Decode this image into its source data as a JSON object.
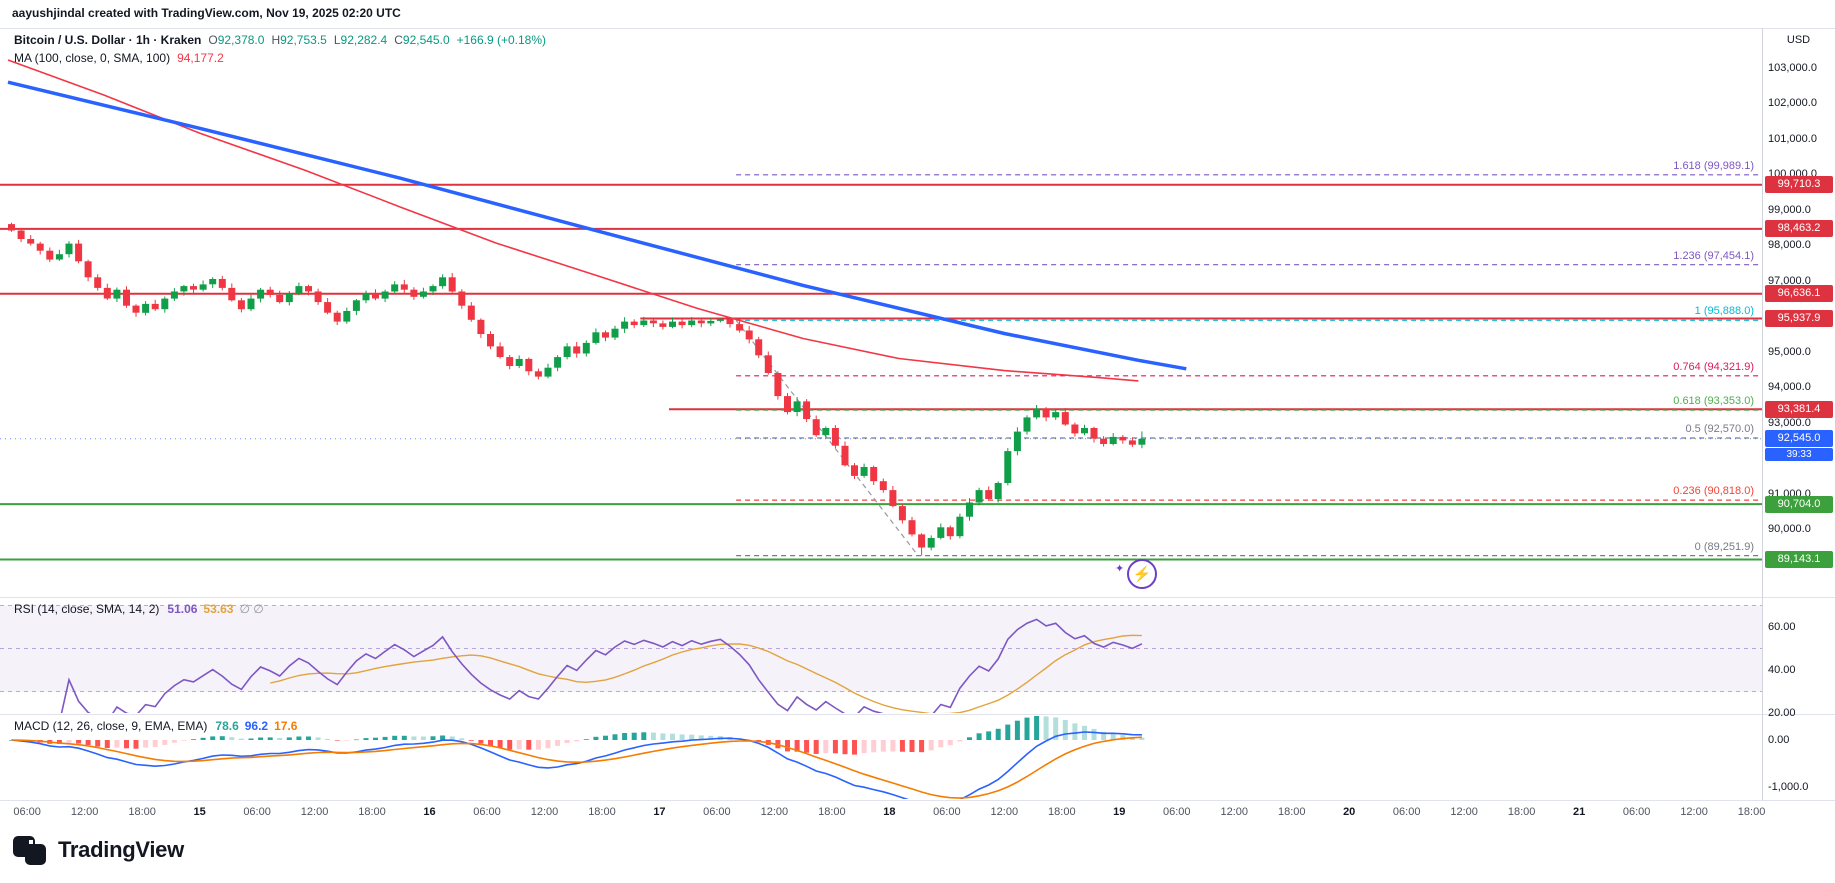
{
  "meta": {
    "attribution": "aayushjindal created with TradingView.com, Nov 19, 2025 02:20 UTC"
  },
  "legend": {
    "symbol": "Bitcoin / U.S. Dollar · 1h · Kraken",
    "ohlc": [
      {
        "k": "O",
        "v": "92,378.0"
      },
      {
        "k": "H",
        "v": "92,753.5"
      },
      {
        "k": "L",
        "v": "92,282.4"
      },
      {
        "k": "C",
        "v": "92,545.0"
      }
    ],
    "change": "+166.9 (+0.18%)",
    "ma_label": "MA (100, close, 0, SMA, 100)",
    "ma_value": "94,177.2"
  },
  "icons": {
    "lightning": "⚡",
    "sparkle": "✦"
  },
  "footer": {
    "brand": "TradingView"
  },
  "axis": {
    "currency": "USD",
    "price_ticks": [
      {
        "text": "103,000.0",
        "price": 103000
      },
      {
        "text": "102,000.0",
        "price": 102000
      },
      {
        "text": "101,000.0",
        "price": 101000
      },
      {
        "text": "100,000.0",
        "price": 100000
      },
      {
        "text": "99,000.0",
        "price": 99000
      },
      {
        "text": "98,000.0",
        "price": 98000
      },
      {
        "text": "97,000.0",
        "price": 97000
      },
      {
        "text": "96,000.0",
        "price": 96000
      },
      {
        "text": "95,000.0",
        "price": 95000
      },
      {
        "text": "94,000.0",
        "price": 94000
      },
      {
        "text": "93,000.0",
        "price": 93000
      },
      {
        "text": "91,000.0",
        "price": 91000
      },
      {
        "text": "90,000.0",
        "price": 90000
      }
    ],
    "badges": [
      {
        "text": "99,710.3",
        "price": 99710.3,
        "color": "#dd3341"
      },
      {
        "text": "98,463.2",
        "price": 98463.2,
        "color": "#dd3341"
      },
      {
        "text": "96,636.1",
        "price": 96636.1,
        "color": "#dd3341"
      },
      {
        "text": "95,937.9",
        "price": 95937.9,
        "color": "#dd3341"
      },
      {
        "text": "93,381.4",
        "price": 93381.4,
        "color": "#dd3341"
      },
      {
        "text": "92,545.0",
        "price": 92545.0,
        "color": "#2962ff",
        "countdown": "39:33"
      },
      {
        "text": "90,704.0",
        "price": 90704.0,
        "color": "#3ca03c"
      },
      {
        "text": "89,143.1",
        "price": 89143.1,
        "color": "#3ca03c"
      }
    ],
    "time_labels": [
      {
        "t": "06:00",
        "i": 2
      },
      {
        "t": "12:00",
        "i": 8
      },
      {
        "t": "18:00",
        "i": 14
      },
      {
        "t": "15",
        "i": 20,
        "day": true
      },
      {
        "t": "06:00",
        "i": 26
      },
      {
        "t": "12:00",
        "i": 32
      },
      {
        "t": "18:00",
        "i": 38
      },
      {
        "t": "16",
        "i": 44,
        "day": true
      },
      {
        "t": "06:00",
        "i": 50
      },
      {
        "t": "12:00",
        "i": 56
      },
      {
        "t": "18:00",
        "i": 62
      },
      {
        "t": "17",
        "i": 68,
        "day": true
      },
      {
        "t": "06:00",
        "i": 74
      },
      {
        "t": "12:00",
        "i": 80
      },
      {
        "t": "18:00",
        "i": 86
      },
      {
        "t": "18",
        "i": 92,
        "day": true
      },
      {
        "t": "06:00",
        "i": 98
      },
      {
        "t": "12:00",
        "i": 104
      },
      {
        "t": "18:00",
        "i": 110
      },
      {
        "t": "19",
        "i": 116,
        "day": true
      },
      {
        "t": "06:00",
        "i": 122
      },
      {
        "t": "12:00",
        "i": 128
      },
      {
        "t": "18:00",
        "i": 134
      },
      {
        "t": "20",
        "i": 140,
        "day": true
      },
      {
        "t": "06:00",
        "i": 146
      },
      {
        "t": "12:00",
        "i": 152
      },
      {
        "t": "18:00",
        "i": 158
      },
      {
        "t": "21",
        "i": 164,
        "day": true
      },
      {
        "t": "06:00",
        "i": 170
      },
      {
        "t": "12:00",
        "i": 176
      },
      {
        "t": "18:00",
        "i": 182
      }
    ]
  },
  "chart_data": {
    "type": "candlestick",
    "title": "Bitcoin / U.S. Dollar",
    "interval": "1h",
    "exchange": "Kraken",
    "up_color": "#109e49",
    "down_color": "#ef3642",
    "closes": [
      98420,
      98180,
      98050,
      97850,
      97600,
      97750,
      98050,
      97550,
      97100,
      96800,
      96500,
      96750,
      96300,
      96100,
      96350,
      96200,
      96500,
      96700,
      96850,
      96750,
      96900,
      97050,
      96800,
      96450,
      96200,
      96500,
      96750,
      96600,
      96400,
      96650,
      96850,
      96700,
      96400,
      96100,
      95850,
      96150,
      96450,
      96650,
      96500,
      96700,
      96900,
      96750,
      96550,
      96700,
      96850,
      97100,
      96700,
      96300,
      95900,
      95500,
      95150,
      94850,
      94600,
      94800,
      94450,
      94300,
      94550,
      94850,
      95150,
      94950,
      95250,
      95550,
      95400,
      95650,
      95850,
      95750,
      95880,
      95800,
      95700,
      95850,
      95750,
      95880,
      95800,
      95870,
      95920,
      95780,
      95600,
      95350,
      94900,
      94400,
      93750,
      93300,
      93600,
      93100,
      92650,
      92850,
      92350,
      91800,
      91500,
      91750,
      91350,
      91100,
      90650,
      90250,
      89850,
      89480,
      89750,
      90050,
      89800,
      90350,
      90750,
      91100,
      90850,
      91300,
      92200,
      92750,
      93150,
      93400,
      93150,
      93300,
      92950,
      92700,
      92850,
      92550,
      92400,
      92600,
      92500,
      92378,
      92545
    ],
    "last_bar": {
      "o": 92378.0,
      "h": 92753.5,
      "l": 92282.4,
      "c": 92545.0
    },
    "wick_overrides": {
      "74": {
        "high": 95937.9
      },
      "95": {
        "low": 89251.9
      }
    },
    "current_price": 92545.0,
    "ma_blue": {
      "color": "#2962ff",
      "width": 3.5,
      "points": [
        [
          0,
          102600
        ],
        [
          20,
          101300
        ],
        [
          41,
          99890
        ],
        [
          62,
          98370
        ],
        [
          83,
          96870
        ],
        [
          104,
          95515
        ],
        [
          118,
          94760
        ],
        [
          123,
          94520
        ]
      ]
    },
    "ma_red": {
      "color": "#f23645",
      "width": 1.6,
      "points": [
        [
          0,
          103225
        ],
        [
          10,
          102240
        ],
        [
          20,
          101165
        ],
        [
          31,
          100120
        ],
        [
          41,
          99075
        ],
        [
          51,
          98060
        ],
        [
          62,
          97100
        ],
        [
          72,
          96220
        ],
        [
          83,
          95375
        ],
        [
          93,
          94810
        ],
        [
          104,
          94470
        ],
        [
          114,
          94270
        ],
        [
          118,
          94177.2
        ]
      ]
    },
    "hlines": [
      {
        "price": 99710.3,
        "color": "#dd3341",
        "from_i": 0
      },
      {
        "price": 98463.2,
        "color": "#dd3341",
        "from_i": 0
      },
      {
        "price": 96636.1,
        "color": "#dd3341",
        "from_i": 0
      },
      {
        "price": 95937.9,
        "color": "#dd3341",
        "from_i": 66
      },
      {
        "price": 93381.4,
        "color": "#dd3341",
        "from_i": 69
      },
      {
        "price": 90704.0,
        "color": "#3ca03c",
        "from_i": 0
      },
      {
        "price": 89143.1,
        "color": "#3ca03c",
        "from_i": 0
      }
    ],
    "fib": {
      "from_i": 76,
      "trend": {
        "i1": 76,
        "p1": 95888.0,
        "i2": 95,
        "p2": 89251.9
      },
      "levels": [
        {
          "text": "1.618 (99,989.1)",
          "price": 99989.1,
          "color": "#7e57c2"
        },
        {
          "text": "1.236 (97,454.1)",
          "price": 97454.1,
          "color": "#7e57c2"
        },
        {
          "text": "1 (95,888.0)",
          "price": 95888.0,
          "color": "#00bcd4"
        },
        {
          "text": "0.764 (94,321.9)",
          "price": 94321.9,
          "color": "#d81b60"
        },
        {
          "text": "0.618 (93,353.0)",
          "price": 93353.0,
          "color": "#4caf50"
        },
        {
          "text": "0.5 (92,570.0)",
          "price": 92570.0,
          "color": "#787b86"
        },
        {
          "text": "0.236 (90,818.0)",
          "price": 90818.0,
          "color": "#f44336"
        },
        {
          "text": "0 (89,251.9)",
          "price": 89251.9,
          "color": "#787b86"
        }
      ]
    },
    "rsi": {
      "label": "RSI (14, close, SMA, 14, 2)",
      "value_main": "51.06",
      "value_smooth": "53.63",
      "value_extra": "∅ ∅",
      "period": 14,
      "smooth_period": 14,
      "upper_band": 70,
      "middle": 50,
      "lower_band": 30,
      "line_color": "#7e57c2",
      "smooth_color": "#e2a33c",
      "band_fill": "rgba(126,87,194,0.08)",
      "ticks": [
        {
          "text": "60.00",
          "v": 60
        },
        {
          "text": "40.00",
          "v": 40
        },
        {
          "text": "20.00",
          "v": 20
        }
      ]
    },
    "macd": {
      "label": "MACD (12, 26, close, 9, EMA, EMA)",
      "value_hist": "78.6",
      "value_macd": "96.2",
      "value_signal": "17.6",
      "fast": 12,
      "slow": 26,
      "signal_period": 9,
      "macd_color": "#2962ff",
      "signal_color": "#f57c00",
      "hist_colors": {
        "up_grow": "#26a69a",
        "up_fall": "#b2dfdb",
        "down_grow": "#ffcdd2",
        "down_fall": "#ff5252"
      },
      "ticks": [
        {
          "text": "0.00",
          "v": 0
        },
        {
          "text": "-1,000.0",
          "v": -1000
        }
      ]
    }
  }
}
